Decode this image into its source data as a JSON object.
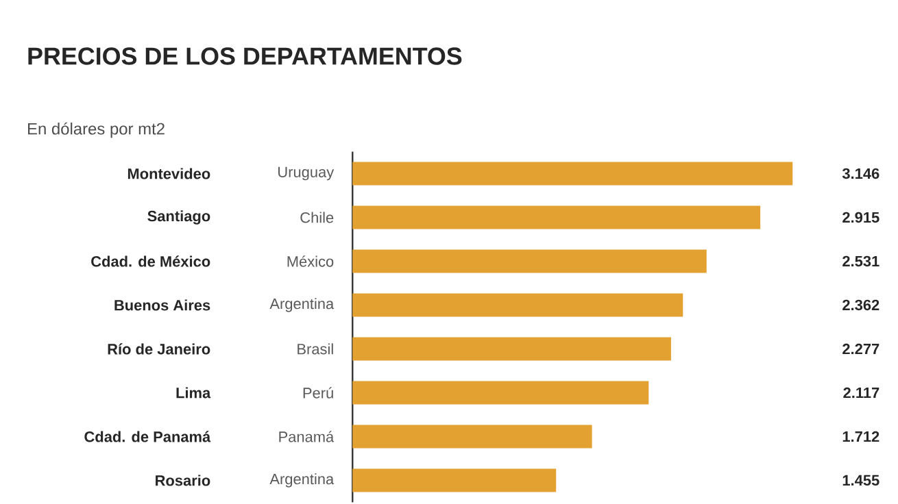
{
  "chart_data": {
    "type": "bar",
    "orientation": "horizontal",
    "title": "PRECIOS DE LOS DEPARTAMENTOS",
    "subtitle": "En dólares por mt2",
    "categories": [
      "Montevideo",
      "Santiago",
      "Cdad. de México",
      "Buenos Aires",
      "Río de Janeiro",
      "Lima",
      "Cdad. de Panamá",
      "Rosario"
    ],
    "values": [
      3146,
      2915,
      2531,
      2362,
      2277,
      2117,
      1712,
      1455
    ],
    "value_labels": [
      "3.146",
      "2.915",
      "2.531",
      "2.362",
      "2.277",
      "2.117",
      "1.712",
      "1.455"
    ],
    "color": "#e3a132",
    "annotations": [
      "Uruguay",
      "Chile",
      "México",
      "Argentina",
      "Brasil",
      "Perú",
      "Panamá",
      "Argentina"
    ]
  }
}
